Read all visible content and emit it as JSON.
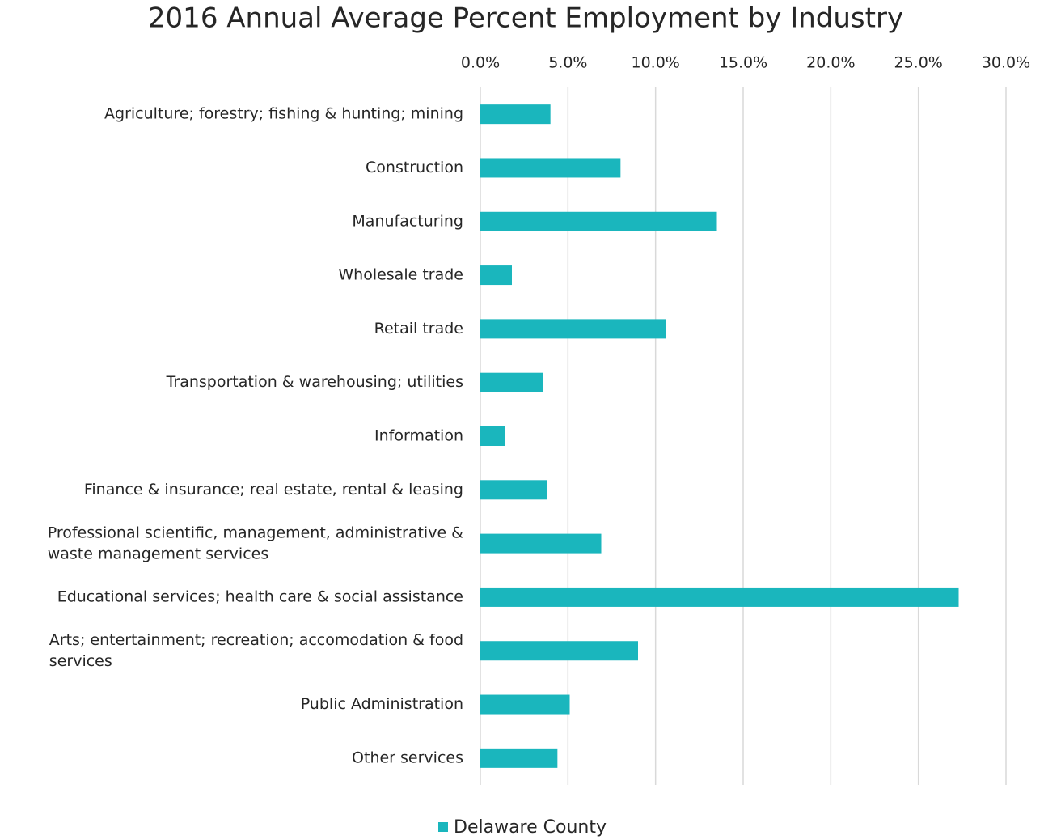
{
  "chart_data": {
    "type": "bar",
    "orientation": "horizontal",
    "title": "2016 Annual Average Percent Employment by Industry",
    "categories": [
      "Agriculture; forestry; fishing & hunting; mining",
      "Construction",
      "Manufacturing",
      "Wholesale trade",
      "Retail trade",
      "Transportation & warehousing; utilities",
      "Information",
      "Finance & insurance; real estate, rental & leasing",
      "Professional scientific, management, administrative & waste management services",
      "Educational services; health care & social assistance",
      "Arts; entertainment; recreation; accomodation & food services",
      "Public Administration",
      "Other services"
    ],
    "series": [
      {
        "name": "Delaware County",
        "color": "#1ab6bd",
        "values": [
          4.0,
          8.0,
          13.5,
          1.8,
          10.6,
          3.6,
          1.4,
          3.8,
          6.9,
          27.3,
          9.0,
          5.1,
          4.4
        ]
      }
    ],
    "xlim": [
      0,
      30
    ],
    "xticks": [
      {
        "value": 0,
        "label": "0.0%"
      },
      {
        "value": 5,
        "label": "5.0%"
      },
      {
        "value": 10,
        "label": "10.0%"
      },
      {
        "value": 15,
        "label": "15.0%"
      },
      {
        "value": 20,
        "label": "20.0%"
      },
      {
        "value": 25,
        "label": "25.0%"
      },
      {
        "value": 30,
        "label": "30.0%"
      }
    ],
    "grid": true,
    "legend": "bottom"
  }
}
